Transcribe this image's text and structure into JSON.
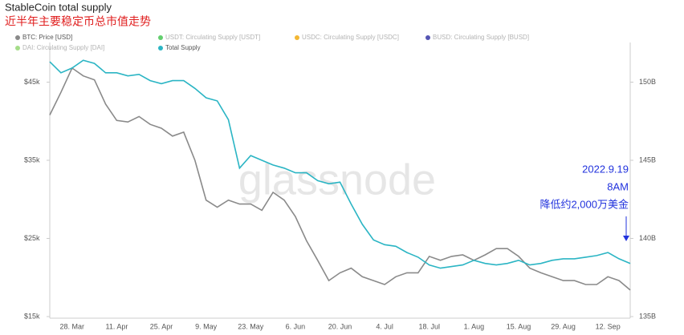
{
  "chart_data": {
    "type": "line",
    "title": "StableCoin total supply",
    "subtitle": "近半年主要稳定币总市值走势",
    "watermark": "glassnode",
    "annotations": [
      "2022.9.19",
      "8AM",
      "降低约2,000万美金"
    ],
    "categories": [
      null,
      null,
      "28. Mar",
      null,
      null,
      null,
      "11. Apr",
      null,
      null,
      null,
      "25. Apr",
      null,
      null,
      null,
      "9. May",
      null,
      null,
      null,
      "23. May",
      null,
      null,
      null,
      "6. Jun",
      null,
      null,
      null,
      "20. Jun",
      null,
      null,
      null,
      "4. Jul",
      null,
      null,
      null,
      "18. Jul",
      null,
      null,
      null,
      "1. Aug",
      null,
      null,
      null,
      "15. Aug",
      null,
      null,
      null,
      "29. Aug",
      null,
      null,
      null,
      "12. Sep",
      null,
      null
    ],
    "series": [
      {
        "name": "BTC: Price [USD]",
        "color": "#8a8a8a",
        "axis": "y",
        "values": [
          40800,
          43700,
          46800,
          45800,
          45300,
          42200,
          40100,
          39900,
          40600,
          39600,
          39100,
          38100,
          38600,
          35000,
          29900,
          29000,
          29900,
          29400,
          29400,
          28600,
          30900,
          29900,
          27800,
          24700,
          22200,
          19600,
          20600,
          21200,
          20100,
          19600,
          19100,
          20100,
          20600,
          20600,
          22700,
          22200,
          22700,
          22900,
          22200,
          22900,
          23700,
          23700,
          22700,
          21200,
          20600,
          20100,
          19600,
          19600,
          19100,
          19100,
          20100,
          19600,
          18400
        ]
      },
      {
        "name": "Total Supply",
        "color": "#2bb5c4",
        "axis": "y2",
        "values": [
          151.3,
          150.6,
          150.9,
          151.4,
          151.2,
          150.6,
          150.6,
          150.4,
          150.5,
          150.1,
          149.9,
          150.1,
          150.1,
          149.6,
          149.0,
          148.8,
          147.6,
          144.5,
          145.3,
          145.0,
          144.7,
          144.5,
          144.2,
          144.2,
          143.7,
          143.5,
          143.6,
          142.2,
          140.9,
          139.9,
          139.6,
          139.5,
          139.1,
          138.8,
          138.3,
          138.1,
          138.2,
          138.3,
          138.6,
          138.4,
          138.3,
          138.4,
          138.6,
          138.3,
          138.4,
          138.6,
          138.7,
          138.7,
          138.8,
          138.9,
          139.1,
          138.7,
          138.4
        ]
      }
    ],
    "legend_items": [
      {
        "name": "BTC: Price [USD]",
        "color": "#8a8a8a",
        "active": true
      },
      {
        "name": "USDT: Circulating Supply [USDT]",
        "color": "#3cc24a",
        "active": false
      },
      {
        "name": "USDC: Circulating Supply [USDC]",
        "color": "#f0a500",
        "active": false
      },
      {
        "name": "BUSD: Circulating Supply [BUSD]",
        "color": "#2a2aa0",
        "active": false
      },
      {
        "name": "DAI: Circulating Supply [DAI]",
        "color": "#8fd46b",
        "active": false
      },
      {
        "name": "Total Supply",
        "color": "#2bb5c4",
        "active": true
      }
    ],
    "ylim": [
      15000,
      50000
    ],
    "yticks": [
      {
        "value": 15000,
        "label": "$15k"
      },
      {
        "value": 25000,
        "label": "$25k"
      },
      {
        "value": 35000,
        "label": "$35k"
      },
      {
        "value": 45000,
        "label": "$45k"
      }
    ],
    "y2lim": [
      135,
      152.5
    ],
    "y2ticks": [
      {
        "value": 135,
        "label": "135B"
      },
      {
        "value": 140,
        "label": "140B"
      },
      {
        "value": 145,
        "label": "145B"
      },
      {
        "value": 150,
        "label": "150B"
      }
    ],
    "grid": false
  }
}
